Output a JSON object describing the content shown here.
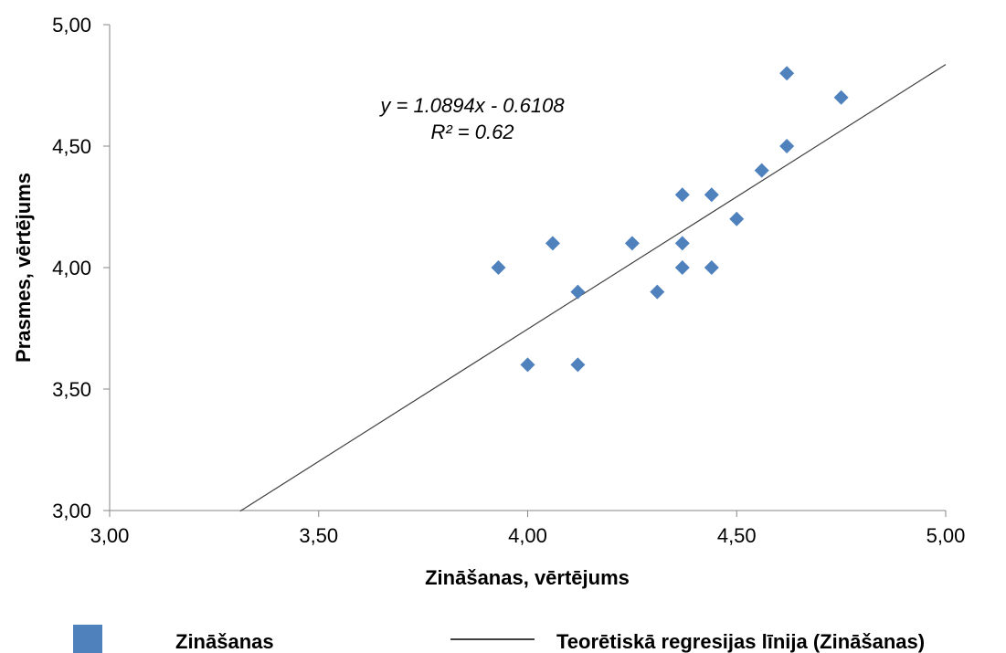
{
  "chart_data": {
    "type": "scatter",
    "xlabel": "Zināšanas, vērtējums",
    "ylabel": "Prasmes, vērtējums",
    "xlim": [
      3.0,
      5.0
    ],
    "ylim": [
      3.0,
      5.0
    ],
    "x_ticks": [
      "3,00",
      "3,50",
      "4,00",
      "4,50",
      "5,00"
    ],
    "y_ticks": [
      "3,00",
      "3,50",
      "4,00",
      "4,50",
      "5,00"
    ],
    "grid": false,
    "legend_position": "bottom",
    "series": [
      {
        "name": "Zināšanas",
        "marker": "diamond",
        "color": "#4f81bd",
        "points": [
          [
            3.93,
            4.0
          ],
          [
            4.0,
            3.6
          ],
          [
            4.06,
            4.1
          ],
          [
            4.12,
            3.9
          ],
          [
            4.12,
            3.6
          ],
          [
            4.25,
            4.1
          ],
          [
            4.31,
            3.9
          ],
          [
            4.37,
            4.3
          ],
          [
            4.37,
            4.1
          ],
          [
            4.37,
            4.0
          ],
          [
            4.44,
            4.3
          ],
          [
            4.44,
            4.0
          ],
          [
            4.5,
            4.2
          ],
          [
            4.56,
            4.4
          ],
          [
            4.62,
            4.5
          ],
          [
            4.62,
            4.8
          ],
          [
            4.75,
            4.7
          ]
        ]
      }
    ],
    "trendline": {
      "name": "Teorētiskā regresijas līnija (Zināšanas)",
      "slope": 1.0894,
      "intercept": -0.6108,
      "x_range": [
        3.312,
        5.0
      ],
      "color": "#404040",
      "equation": "y = 1.0894x - 0.6108",
      "r_squared": "R² = 0.62"
    }
  }
}
